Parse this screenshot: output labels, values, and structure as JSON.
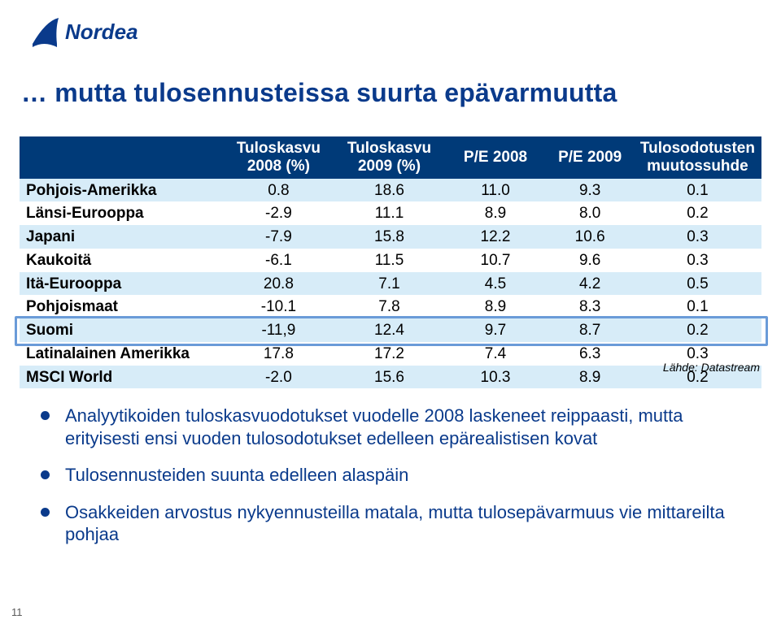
{
  "brand": {
    "name": "Nordea",
    "color": "#0a3a8b"
  },
  "title": "… mutta tulosennusteissa suurta epävarmuutta",
  "table": {
    "header_bg": "#003a78",
    "header_fg": "#ffffff",
    "stripe_colors": [
      "#d7ecf8",
      "#ffffff"
    ],
    "highlight_border": "#6a9bd8",
    "col_widths": [
      "28%",
      "15%",
      "15%",
      "14%",
      "12%",
      "16%"
    ],
    "columns": [
      "",
      "Tuloskasvu 2008 (%)",
      "Tuloskasvu 2009 (%)",
      "P/E 2008",
      "P/E 2009",
      "Tulosodotusten muutossuhde"
    ],
    "rows": [
      {
        "label": "Pohjois-Amerikka",
        "c1": "0.8",
        "c2": "18.6",
        "c3": "11.0",
        "c4": "9.3",
        "c5": "0.1",
        "highlight": false
      },
      {
        "label": "Länsi-Eurooppa",
        "c1": "-2.9",
        "c2": "11.1",
        "c3": "8.9",
        "c4": "8.0",
        "c5": "0.2",
        "highlight": false
      },
      {
        "label": "Japani",
        "c1": "-7.9",
        "c2": "15.8",
        "c3": "12.2",
        "c4": "10.6",
        "c5": "0.3",
        "highlight": false
      },
      {
        "label": "Kaukoitä",
        "c1": "-6.1",
        "c2": "11.5",
        "c3": "10.7",
        "c4": "9.6",
        "c5": "0.3",
        "highlight": false
      },
      {
        "label": "Itä-Eurooppa",
        "c1": "20.8",
        "c2": "7.1",
        "c3": "4.5",
        "c4": "4.2",
        "c5": "0.5",
        "highlight": false
      },
      {
        "label": "Pohjoismaat",
        "c1": "-10.1",
        "c2": "7.8",
        "c3": "8.9",
        "c4": "8.3",
        "c5": "0.1",
        "highlight": false
      },
      {
        "label": "Suomi",
        "c1": "-11,9",
        "c2": "12.4",
        "c3": "9.7",
        "c4": "8.7",
        "c5": "0.2",
        "highlight": true
      },
      {
        "label": "Latinalainen Amerikka",
        "c1": "17.8",
        "c2": "17.2",
        "c3": "7.4",
        "c4": "6.3",
        "c5": "0.3",
        "highlight": false
      },
      {
        "label": "MSCI World",
        "c1": "-2.0",
        "c2": "15.6",
        "c3": "10.3",
        "c4": "8.9",
        "c5": "0.2",
        "highlight": false
      }
    ]
  },
  "source_label": "Lähde: Datastream",
  "bullets": [
    "Analyytikoiden tuloskasvuodotukset vuodelle 2008 laskeneet reippaasti, mutta erityisesti ensi vuoden tulosodotukset edelleen epärealistisen kovat",
    "Tulosennusteiden suunta edelleen alaspäin",
    "Osakkeiden arvostus nykyennusteilla matala, mutta tulosepävarmuus vie mittareilta pohjaa"
  ],
  "page_number": "11"
}
